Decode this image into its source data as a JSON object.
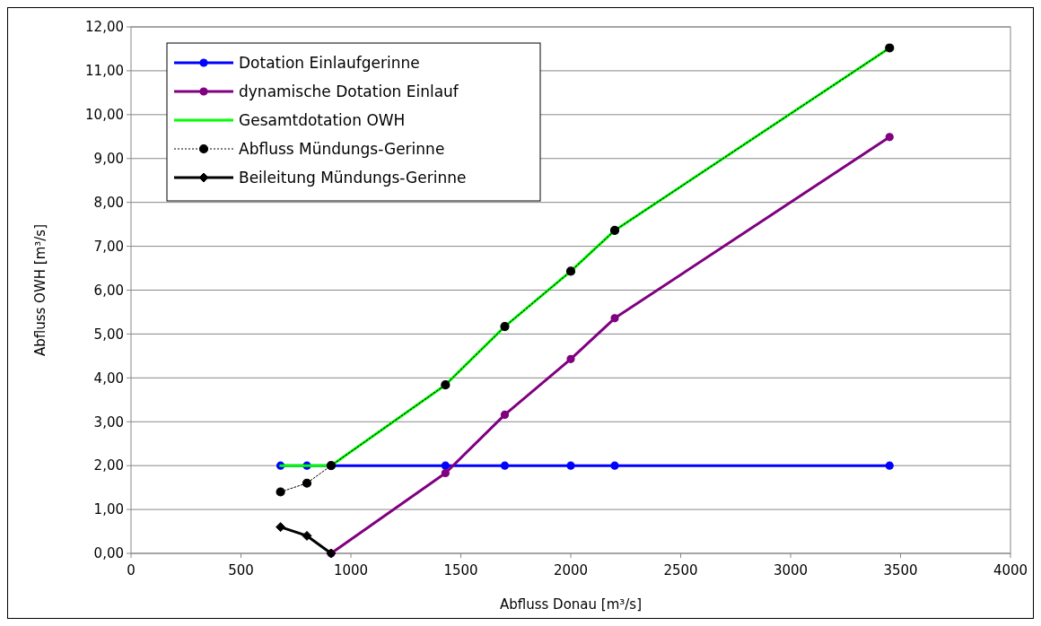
{
  "chart_data": {
    "type": "line",
    "xlabel": "Abfluss Donau [m³/s]",
    "ylabel": "Abfluss OWH [m³/s]",
    "xlim": [
      0,
      4000
    ],
    "xticks": [
      0,
      500,
      1000,
      1500,
      2000,
      2500,
      3000,
      3500,
      4000
    ],
    "ylim": [
      0,
      12
    ],
    "yticks": [
      {
        "value": 0,
        "label": "0,00"
      },
      {
        "value": 1,
        "label": "1,00"
      },
      {
        "value": 2,
        "label": "2,00"
      },
      {
        "value": 3,
        "label": "3,00"
      },
      {
        "value": 4,
        "label": "4,00"
      },
      {
        "value": 5,
        "label": "5,00"
      },
      {
        "value": 6,
        "label": "6,00"
      },
      {
        "value": 7,
        "label": "7,00"
      },
      {
        "value": 8,
        "label": "8,00"
      },
      {
        "value": 9,
        "label": "9,00"
      },
      {
        "value": 10,
        "label": "10,00"
      },
      {
        "value": 11,
        "label": "11,00"
      },
      {
        "value": 12,
        "label": "12,00"
      }
    ],
    "grid": "y",
    "legend": "top left",
    "series": [
      {
        "name": "Dotation Einlaufgerinne",
        "color": "#0000ff",
        "x": [
          680,
          800,
          910,
          1430,
          1700,
          2000,
          2200,
          3450
        ],
        "values": [
          2,
          2,
          2,
          2,
          2,
          2,
          2,
          2
        ],
        "marker": "circle",
        "line_style": "solid"
      },
      {
        "name": "dynamische Dotation Einlauf",
        "color": "#800080",
        "x": [
          910,
          1430,
          1700,
          2000,
          2200,
          3450
        ],
        "values": [
          0,
          1.83,
          3.16,
          4.43,
          5.36,
          9.49
        ],
        "marker": "circle",
        "line_style": "solid"
      },
      {
        "name": "Gesamtdotation OWH",
        "color": "#00ff00",
        "x": [
          680,
          800,
          910,
          1430,
          1700,
          2000,
          2200,
          3450
        ],
        "values": [
          2,
          2,
          2,
          3.84,
          5.17,
          6.43,
          7.36,
          11.52
        ],
        "marker": "none",
        "line_style": "solid"
      },
      {
        "name": "Abfluss Mündungs-Gerinne",
        "color": "#000000",
        "x": [
          680,
          800,
          910,
          1430,
          1700,
          2000,
          2200,
          3450
        ],
        "values": [
          1.4,
          1.6,
          2,
          3.84,
          5.17,
          6.43,
          7.36,
          11.52
        ],
        "marker": "circle",
        "line_style": "dotted"
      },
      {
        "name": "Beileitung Mündungs-Gerinne",
        "color": "#000000",
        "x": [
          680,
          800,
          910
        ],
        "values": [
          0.6,
          0.4,
          0
        ],
        "marker": "diamond",
        "line_style": "solid"
      }
    ]
  }
}
